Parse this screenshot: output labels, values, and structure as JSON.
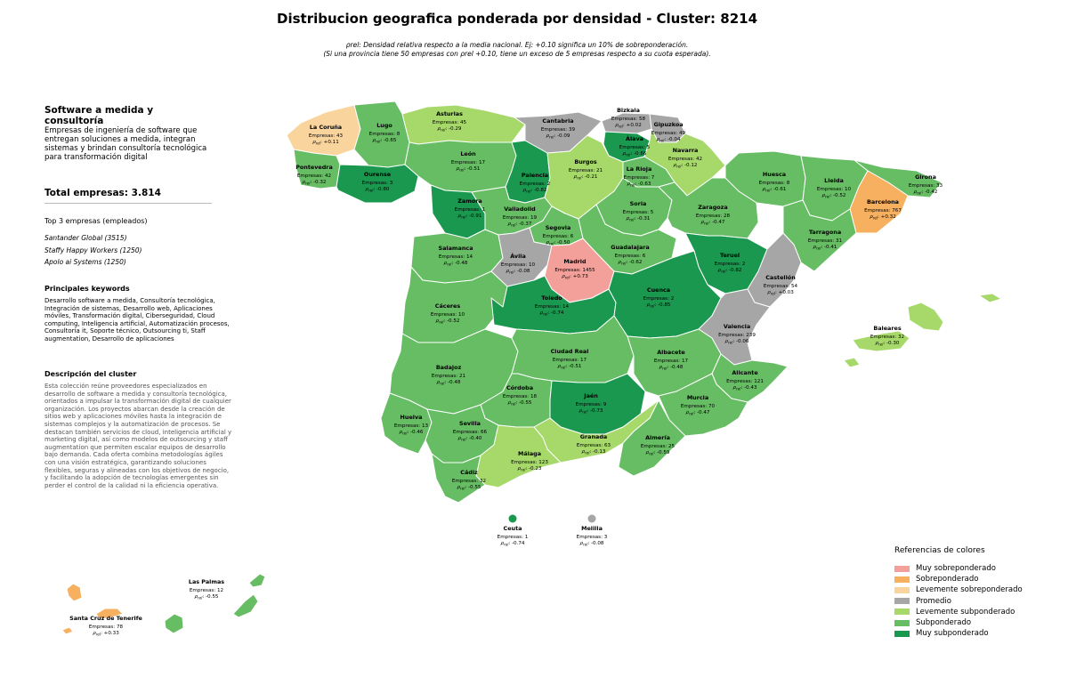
{
  "title": "Distribucion geografica ponderada por densidad - Cluster: 8214",
  "subtitle_line1": "ρrel: Densidad relativa respecto a la media nacional. Ej: +0.10 significa un 10% de sobreponderación.",
  "subtitle_line2": "(Si una provincia tiene 50 empresas con ρrel +0.10, tiene un exceso de 5 empresas respecto a su cuota esperada).",
  "sidebar": {
    "cluster_name": "Software a medida y consultoría",
    "cluster_summary": "Empresas de ingeniería de software que entregan soluciones a medida, integran sistemas y brindan consultoría tecnológica para transformación digital",
    "total_label": "Total empresas: 3.814",
    "top3_title": "Top 3 empresas (empleados)",
    "top3": [
      "Santander Global (3515)",
      "Staffy Happy Workers (1250)",
      "Apolo ai Systems (1250)"
    ],
    "keywords_title": "Principales keywords",
    "keywords": "Desarrollo software a medida, Consultoría tecnológica, Integración de sistemas, Desarrollo web, Aplicaciones móviles, Transformación digital, Ciberseguridad, Cloud computing, Inteligencia artificial, Automatización procesos, Consultoría it, Soporte técnico, Outsourcing ti, Staff augmentation, Desarrollo de aplicaciones",
    "description_title": "Descripción del cluster",
    "description": "Esta colección reúne proveedores especializados en desarrollo de software a medida y consultoría tecnológica, orientados a impulsar la transformación digital de cualquier organización. Los proyectos abarcan desde la creación de sitios web y aplicaciones móviles hasta la integración de sistemas complejos y la automatización de procesos. Se destacan también servicios de cloud, inteligencia artificial y marketing digital, así como modelos de outsourcing y staff augmentation que permiten escalar equipos de desarrollo bajo demanda. Cada oferta combina metodologías ágiles con una visión estratégica, garantizando soluciones flexibles, seguras y alineadas con los objetivos de negocio, y facilitando la adopción de tecnologías emergentes sin perder el control de la calidad ni la eficiencia operativa."
  },
  "colors": {
    "muy_sobre": "#F4A09A",
    "sobre": "#F6B05F",
    "lev_sobre": "#FAD49D",
    "promedio": "#A6A6A6",
    "lev_sub": "#A6D96A",
    "sub": "#66BD63",
    "muy_sub": "#1A9850"
  },
  "legend": {
    "title": "Referencias de colores",
    "items": [
      {
        "label": "Muy sobreponderado",
        "color": "#F4A09A"
      },
      {
        "label": "Sobreponderado",
        "color": "#F6B05F"
      },
      {
        "label": "Levemente sobreponderado",
        "color": "#FAD49D"
      },
      {
        "label": "Promedio",
        "color": "#A6A6A6"
      },
      {
        "label": "Levemente subponderado",
        "color": "#A6D96A"
      },
      {
        "label": "Subponderado",
        "color": "#66BD63"
      },
      {
        "label": "Muy subponderado",
        "color": "#1A9850"
      }
    ]
  },
  "provinces": [
    {
      "name": "La Coruña",
      "empresas": "Empresas: 43",
      "rho": "+0.11",
      "cat": "lev_sobre"
    },
    {
      "name": "Lugo",
      "empresas": "Empresas: 8",
      "rho": "-0.65",
      "cat": "sub"
    },
    {
      "name": "Asturias",
      "empresas": "Empresas: 45",
      "rho": "-0.29",
      "cat": "lev_sub"
    },
    {
      "name": "Cantabria",
      "empresas": "Empresas: 39",
      "rho": "-0.09",
      "cat": "promedio"
    },
    {
      "name": "Bizkaia",
      "empresas": "Empresas: 58",
      "rho": "+0.02",
      "cat": "promedio"
    },
    {
      "name": "Gipuzkoa",
      "empresas": "Empresas: 49",
      "rho": "-0.04",
      "cat": "promedio"
    },
    {
      "name": "Álava",
      "empresas": "Empresas: 5",
      "rho": "-0.66",
      "cat": "muy_sub"
    },
    {
      "name": "Navarra",
      "empresas": "Empresas: 42",
      "rho": "-0.12",
      "cat": "lev_sub"
    },
    {
      "name": "Pontevedra",
      "empresas": "Empresas: 42",
      "rho": "-0.32",
      "cat": "sub"
    },
    {
      "name": "Ourense",
      "empresas": "Empresas: 3",
      "rho": "-0.80",
      "cat": "muy_sub"
    },
    {
      "name": "León",
      "empresas": "Empresas: 17",
      "rho": "-0.51",
      "cat": "sub"
    },
    {
      "name": "Palencia",
      "empresas": "Empresas: 2",
      "rho": "-0.82",
      "cat": "muy_sub"
    },
    {
      "name": "Burgos",
      "empresas": "Empresas: 21",
      "rho": "-0.21",
      "cat": "lev_sub"
    },
    {
      "name": "La Rioja",
      "empresas": "Empresas: 7",
      "rho": "-0.63",
      "cat": "sub"
    },
    {
      "name": "Huesca",
      "empresas": "Empresas: 8",
      "rho": "-0.61",
      "cat": "sub"
    },
    {
      "name": "Lleida",
      "empresas": "Empresas: 10",
      "rho": "-0.52",
      "cat": "sub"
    },
    {
      "name": "Girona",
      "empresas": "Empresas: 33",
      "rho": "-0.42",
      "cat": "sub"
    },
    {
      "name": "Barcelona",
      "empresas": "Empresas: 767",
      "rho": "+0.32",
      "cat": "sobre"
    },
    {
      "name": "Zamora",
      "empresas": "Empresas: 1",
      "rho": "-0.91",
      "cat": "muy_sub"
    },
    {
      "name": "Valladolid",
      "empresas": "Empresas: 19",
      "rho": "-0.37",
      "cat": "sub"
    },
    {
      "name": "Soria",
      "empresas": "Empresas: 5",
      "rho": "-0.31",
      "cat": "sub"
    },
    {
      "name": "Zaragoza",
      "empresas": "Empresas: 28",
      "rho": "-0.47",
      "cat": "sub"
    },
    {
      "name": "Tarragona",
      "empresas": "Empresas: 31",
      "rho": "-0.41",
      "cat": "sub"
    },
    {
      "name": "Salamanca",
      "empresas": "Empresas: 14",
      "rho": "-0.48",
      "cat": "sub"
    },
    {
      "name": "Segovia",
      "empresas": "Empresas: 6",
      "rho": "-0.50",
      "cat": "sub"
    },
    {
      "name": "Ávila",
      "empresas": "Empresas: 10",
      "rho": "-0.08",
      "cat": "promedio"
    },
    {
      "name": "Madrid",
      "empresas": "Empresas: 1455",
      "rho": "+0.73",
      "cat": "muy_sobre"
    },
    {
      "name": "Guadalajara",
      "empresas": "Empresas: 6",
      "rho": "-0.62",
      "cat": "sub"
    },
    {
      "name": "Teruel",
      "empresas": "Empresas: 2",
      "rho": "-0.82",
      "cat": "muy_sub"
    },
    {
      "name": "Castellón",
      "empresas": "Empresas: 54",
      "rho": "+0.03",
      "cat": "promedio"
    },
    {
      "name": "Cáceres",
      "empresas": "Empresas: 10",
      "rho": "-0.52",
      "cat": "sub"
    },
    {
      "name": "Toledo",
      "empresas": "Empresas: 14",
      "rho": "-0.74",
      "cat": "muy_sub"
    },
    {
      "name": "Cuenca",
      "empresas": "Empresas: 2",
      "rho": "-0.85",
      "cat": "muy_sub"
    },
    {
      "name": "Valencia",
      "empresas": "Empresas: 239",
      "rho": "-0.06",
      "cat": "promedio"
    },
    {
      "name": "Baleares",
      "empresas": "Empresas: 32",
      "rho": "-0.30",
      "cat": "lev_sub"
    },
    {
      "name": "Badajoz",
      "empresas": "Empresas: 21",
      "rho": "-0.48",
      "cat": "sub"
    },
    {
      "name": "Ciudad Real",
      "empresas": "Empresas: 17",
      "rho": "-0.51",
      "cat": "sub"
    },
    {
      "name": "Albacete",
      "empresas": "Empresas: 17",
      "rho": "-0.48",
      "cat": "sub"
    },
    {
      "name": "Alicante",
      "empresas": "Empresas: 121",
      "rho": "-0.43",
      "cat": "sub"
    },
    {
      "name": "Córdoba",
      "empresas": "Empresas: 18",
      "rho": "-0.55",
      "cat": "sub"
    },
    {
      "name": "Jaén",
      "empresas": "Empresas: 9",
      "rho": "-0.73",
      "cat": "muy_sub"
    },
    {
      "name": "Murcia",
      "empresas": "Empresas: 70",
      "rho": "-0.47",
      "cat": "sub"
    },
    {
      "name": "Huelva",
      "empresas": "Empresas: 13",
      "rho": "-0.46",
      "cat": "sub"
    },
    {
      "name": "Sevilla",
      "empresas": "Empresas: 66",
      "rho": "-0.40",
      "cat": "sub"
    },
    {
      "name": "Granada",
      "empresas": "Empresas: 63",
      "rho": "-0.13",
      "cat": "lev_sub"
    },
    {
      "name": "Almería",
      "empresas": "Empresas: 25",
      "rho": "-0.59",
      "cat": "sub"
    },
    {
      "name": "Málaga",
      "empresas": "Empresas: 123",
      "rho": "-0.23",
      "cat": "lev_sub"
    },
    {
      "name": "Cádiz",
      "empresas": "Empresas: 32",
      "rho": "-0.55",
      "cat": "sub"
    },
    {
      "name": "Ceuta",
      "empresas": "Empresas: 1",
      "rho": "-0.74",
      "cat": "muy_sub"
    },
    {
      "name": "Melilla",
      "empresas": "Empresas: 3",
      "rho": "-0.08",
      "cat": "promedio"
    },
    {
      "name": "Las Palmas",
      "empresas": "Empresas: 12",
      "rho": "-0.55",
      "cat": "sub"
    },
    {
      "name": "Santa Cruz de Tenerife",
      "empresas": "Empresas: 78",
      "rho": "+0.33",
      "cat": "sobre"
    }
  ]
}
